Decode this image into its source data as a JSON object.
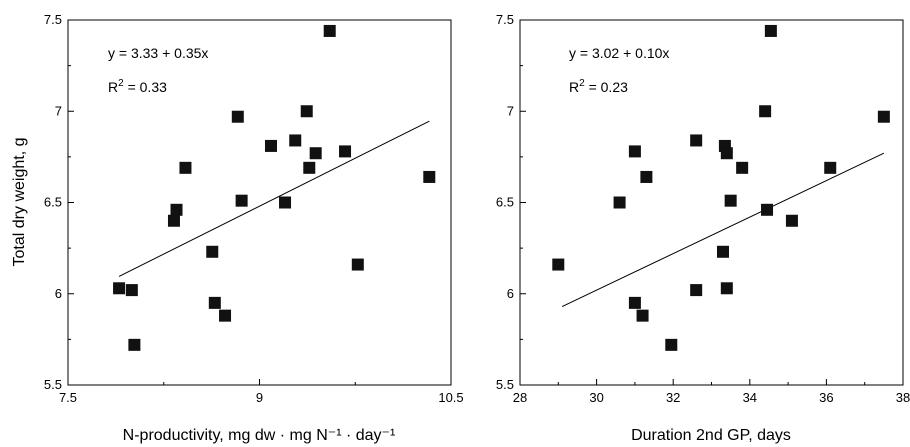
{
  "charts": [
    {
      "type": "scatter",
      "xlabel": "N-productivity, mg dw · mg N⁻¹ · day⁻¹",
      "ylabel": "Total dry weight, g",
      "xlim": [
        7.5,
        10.5
      ],
      "ylim": [
        5.5,
        7.5
      ],
      "xticks": [
        7.5,
        9,
        10.5
      ],
      "xticks_minor": [
        8.25,
        9.75
      ],
      "yticks": [
        5.5,
        6,
        6.5,
        7,
        7.5
      ],
      "equation": "y = 3.33 + 0.35x",
      "r2_prefix": "R",
      "r2_sup": "2",
      "r2_value": " = 0.33",
      "fit": {
        "intercept": 3.33,
        "slope": 0.35,
        "x_range": [
          7.9,
          10.33
        ]
      },
      "points": [
        {
          "x": 7.9,
          "y": 6.03
        },
        {
          "x": 8.0,
          "y": 6.02
        },
        {
          "x": 8.02,
          "y": 5.72
        },
        {
          "x": 8.33,
          "y": 6.4
        },
        {
          "x": 8.35,
          "y": 6.46
        },
        {
          "x": 8.42,
          "y": 6.69
        },
        {
          "x": 8.63,
          "y": 6.23
        },
        {
          "x": 8.65,
          "y": 5.95
        },
        {
          "x": 8.73,
          "y": 5.88
        },
        {
          "x": 8.83,
          "y": 6.97
        },
        {
          "x": 8.86,
          "y": 6.51
        },
        {
          "x": 9.09,
          "y": 6.81
        },
        {
          "x": 9.2,
          "y": 6.5
        },
        {
          "x": 9.28,
          "y": 6.84
        },
        {
          "x": 9.37,
          "y": 7.0
        },
        {
          "x": 9.39,
          "y": 6.69
        },
        {
          "x": 9.44,
          "y": 6.77
        },
        {
          "x": 9.55,
          "y": 7.44
        },
        {
          "x": 9.67,
          "y": 6.78
        },
        {
          "x": 9.77,
          "y": 6.16
        },
        {
          "x": 10.33,
          "y": 6.64
        }
      ]
    },
    {
      "type": "scatter",
      "xlabel": "Duration 2nd GP, days",
      "ylabel": "",
      "xlim": [
        28,
        38
      ],
      "ylim": [
        5.5,
        7.5
      ],
      "xticks": [
        28,
        30,
        32,
        34,
        36,
        38
      ],
      "xticks_minor": [
        29,
        31,
        33,
        35,
        37
      ],
      "yticks": [
        5.5,
        6,
        6.5,
        7,
        7.5
      ],
      "equation": "y = 3.02 + 0.10x",
      "r2_prefix": "R",
      "r2_sup": "2",
      "r2_value": " = 0.23",
      "fit": {
        "intercept": 3.02,
        "slope": 0.1,
        "x_range": [
          29.1,
          37.5
        ]
      },
      "points": [
        {
          "x": 29.0,
          "y": 6.16
        },
        {
          "x": 30.6,
          "y": 6.5
        },
        {
          "x": 31.0,
          "y": 5.95
        },
        {
          "x": 31.0,
          "y": 6.78
        },
        {
          "x": 31.2,
          "y": 5.88
        },
        {
          "x": 31.3,
          "y": 6.64
        },
        {
          "x": 31.95,
          "y": 5.72
        },
        {
          "x": 32.6,
          "y": 6.84
        },
        {
          "x": 32.6,
          "y": 6.02
        },
        {
          "x": 33.3,
          "y": 6.23
        },
        {
          "x": 33.35,
          "y": 6.81
        },
        {
          "x": 33.4,
          "y": 6.77
        },
        {
          "x": 33.4,
          "y": 6.03
        },
        {
          "x": 33.5,
          "y": 6.51
        },
        {
          "x": 33.8,
          "y": 6.69
        },
        {
          "x": 34.4,
          "y": 7.0
        },
        {
          "x": 34.45,
          "y": 6.46
        },
        {
          "x": 34.55,
          "y": 7.44
        },
        {
          "x": 35.1,
          "y": 6.4
        },
        {
          "x": 36.1,
          "y": 6.69
        },
        {
          "x": 37.5,
          "y": 6.97
        }
      ]
    }
  ]
}
